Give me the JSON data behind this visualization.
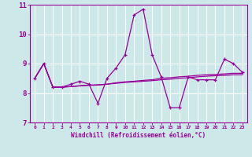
{
  "xlabel": "Windchill (Refroidissement éolien,°C)",
  "bg_color": "#cce8e8",
  "grid_color": "#ffffff",
  "line_color": "#990099",
  "xlim": [
    -0.5,
    23.5
  ],
  "ylim": [
    7,
    11
  ],
  "yticks": [
    7,
    8,
    9,
    10,
    11
  ],
  "xticks": [
    0,
    1,
    2,
    3,
    4,
    5,
    6,
    7,
    8,
    9,
    10,
    11,
    12,
    13,
    14,
    15,
    16,
    17,
    18,
    19,
    20,
    21,
    22,
    23
  ],
  "series1_x": [
    0,
    1,
    2,
    3,
    4,
    5,
    6,
    7,
    8,
    9,
    10,
    11,
    12,
    13,
    14,
    15,
    16,
    17,
    18,
    19,
    20,
    21,
    22,
    23
  ],
  "series1_y": [
    8.5,
    9.0,
    8.2,
    8.2,
    8.3,
    8.4,
    8.3,
    7.65,
    8.5,
    8.85,
    9.3,
    10.65,
    10.85,
    9.3,
    8.55,
    7.5,
    7.5,
    8.55,
    8.45,
    8.45,
    8.45,
    9.15,
    9.0,
    8.7
  ],
  "series2_x": [
    0,
    1,
    2,
    3,
    4,
    5,
    6,
    7,
    8,
    9,
    10,
    11,
    12,
    13,
    14,
    15,
    16,
    17,
    18,
    19,
    20,
    21,
    22,
    23
  ],
  "series2_y": [
    8.5,
    9.0,
    8.2,
    8.2,
    8.22,
    8.25,
    8.27,
    8.28,
    8.3,
    8.35,
    8.38,
    8.4,
    8.43,
    8.45,
    8.5,
    8.52,
    8.55,
    8.57,
    8.6,
    8.62,
    8.63,
    8.65,
    8.67,
    8.67
  ],
  "series3_x": [
    0,
    1,
    2,
    3,
    4,
    5,
    6,
    7,
    8,
    9,
    10,
    11,
    12,
    13,
    14,
    15,
    16,
    17,
    18,
    19,
    20,
    21,
    22,
    23
  ],
  "series3_y": [
    8.5,
    9.0,
    8.2,
    8.2,
    8.22,
    8.24,
    8.26,
    8.27,
    8.3,
    8.33,
    8.36,
    8.38,
    8.4,
    8.42,
    8.45,
    8.47,
    8.5,
    8.52,
    8.55,
    8.57,
    8.59,
    8.6,
    8.62,
    8.62
  ]
}
